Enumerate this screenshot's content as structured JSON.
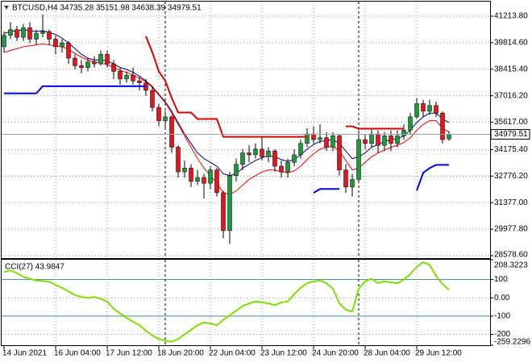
{
  "chart_data": [
    {
      "type": "candlestick",
      "title": "BTCUSD,H4  34735.28 35151.98 34638.39 34979.51",
      "categories": [
        "14 Jun 2021",
        null,
        null,
        null,
        null,
        null,
        null,
        null,
        "16 Jun 04:00",
        null,
        null,
        null,
        null,
        null,
        null,
        null,
        "17 Jun 12:00",
        null,
        null,
        null,
        null,
        null,
        null,
        null,
        "18 Jun 20:00",
        null,
        null,
        null,
        null,
        null,
        null,
        null,
        "22 Jun 04:00",
        null,
        null,
        null,
        null,
        null,
        null,
        null,
        "23 Jun 12:00",
        null,
        null,
        null,
        null,
        null,
        null,
        null,
        "24 Jun 20:00",
        null,
        null,
        null,
        null,
        null,
        null,
        null,
        "28 Jun 04:00",
        null,
        null,
        null,
        null,
        null,
        null,
        null,
        "29 Jun 12:00",
        null,
        null,
        null,
        null,
        null
      ],
      "open": [
        39600,
        40200,
        40500,
        40100,
        40600,
        40000,
        40300,
        40400,
        40000,
        39600,
        39800,
        39000,
        38600,
        38500,
        38800,
        38700,
        39200,
        38700,
        38300,
        37900,
        38100,
        37800,
        37700,
        37300,
        36400,
        35700,
        35900,
        34300,
        33000,
        33200,
        32500,
        32700,
        32400,
        33100,
        31900,
        29900,
        32800,
        33400,
        34000,
        33900,
        34200,
        33800,
        34100,
        33300,
        33000,
        33500,
        33900,
        34500,
        35000,
        34700,
        34800,
        34300,
        34900,
        33100,
        32200,
        32600,
        34700,
        34500,
        35000,
        34400,
        34900,
        34500,
        34900,
        35200,
        35900,
        36600,
        36200,
        36500,
        36100,
        34735.28
      ],
      "high": [
        40400,
        40900,
        40700,
        40800,
        40900,
        40500,
        41300,
        40500,
        40200,
        40000,
        39900,
        39200,
        38900,
        39000,
        39100,
        39400,
        39400,
        38900,
        38500,
        38300,
        38500,
        38000,
        37900,
        37500,
        36600,
        36200,
        36000,
        34400,
        33600,
        33400,
        33100,
        32900,
        33300,
        33200,
        32000,
        33000,
        33700,
        34200,
        34400,
        34500,
        34800,
        34300,
        34200,
        33600,
        33700,
        34200,
        34700,
        35300,
        35400,
        35500,
        35100,
        35100,
        35000,
        33400,
        32900,
        35200,
        35000,
        35300,
        35200,
        35100,
        35200,
        35200,
        35500,
        36100,
        36900,
        36800,
        36800,
        36700,
        36200,
        35151.98
      ],
      "low": [
        39300,
        40000,
        39900,
        39900,
        39800,
        39700,
        40100,
        39700,
        39200,
        39300,
        38700,
        38400,
        38200,
        38300,
        38500,
        38600,
        38500,
        37900,
        37600,
        37700,
        37600,
        37300,
        37000,
        36200,
        35400,
        35300,
        34000,
        32700,
        32700,
        32200,
        32300,
        31600,
        32100,
        31700,
        29500,
        29200,
        32500,
        33100,
        33500,
        33700,
        33600,
        33500,
        33000,
        32700,
        32700,
        33300,
        33700,
        34300,
        34500,
        34500,
        34100,
        34100,
        32800,
        31900,
        31700,
        32400,
        34200,
        34300,
        34000,
        34100,
        34100,
        34300,
        34700,
        35000,
        35800,
        35900,
        36000,
        35900,
        34500,
        34638.39
      ],
      "close": [
        40200,
        40500,
        40100,
        40600,
        40000,
        40300,
        40400,
        40000,
        39600,
        39800,
        39000,
        38600,
        38500,
        38800,
        38700,
        39200,
        38700,
        38300,
        37900,
        38100,
        37800,
        37700,
        37300,
        36400,
        35700,
        35900,
        34300,
        33000,
        33200,
        32500,
        32700,
        32400,
        33100,
        31900,
        29900,
        32800,
        33400,
        34000,
        33900,
        34200,
        33800,
        34100,
        33300,
        33000,
        33500,
        33900,
        34500,
        35000,
        34700,
        34800,
        34300,
        34900,
        33100,
        32200,
        32600,
        34700,
        34500,
        35000,
        34400,
        34900,
        34500,
        34900,
        35200,
        35900,
        36600,
        36200,
        36500,
        36100,
        34700,
        34979.51
      ],
      "up_color": "#1f9a3a",
      "down_color": "#e8141b",
      "wick_color": "#000000",
      "series": [
        {
          "color": "#000080",
          "line_width": 1,
          "values": [
            40300,
            40400,
            40450,
            40500,
            40450,
            40400,
            40450,
            40350,
            40250,
            40050,
            39800,
            39500,
            39200,
            39000,
            38900,
            38900,
            38850,
            38700,
            38500,
            38400,
            38250,
            38050,
            37800,
            37500,
            37100,
            36700,
            36200,
            35600,
            35000,
            34500,
            34000,
            33700,
            33500,
            33300,
            32900,
            32800,
            32900,
            33200,
            33400,
            33600,
            33750,
            33850,
            33800,
            33650,
            33550,
            33650,
            33900,
            34200,
            34450,
            34600,
            34650,
            34700,
            34500,
            34100,
            33700,
            33800,
            34000,
            34300,
            34450,
            34600,
            34700,
            34750,
            34900,
            35200,
            35600,
            35900,
            36100,
            36100,
            35800,
            35600
          ]
        },
        {
          "color": "#ff0000",
          "line_width": 1,
          "values": [
            39300,
            39400,
            39500,
            39600,
            39650,
            39700,
            39750,
            39700,
            39650,
            39600,
            39450,
            39250,
            39050,
            38900,
            38800,
            38750,
            38650,
            38500,
            38350,
            38250,
            38100,
            37950,
            37750,
            37450,
            37050,
            36650,
            36100,
            35500,
            34900,
            34300,
            33700,
            33200,
            32800,
            32400,
            31900,
            31800,
            32000,
            32300,
            32600,
            32800,
            33000,
            33100,
            33100,
            33000,
            32950,
            33050,
            33300,
            33650,
            33950,
            34200,
            34300,
            34350,
            34100,
            33600,
            33100,
            33200,
            33500,
            33800,
            34000,
            34150,
            34300,
            34400,
            34550,
            34800,
            35200,
            35500,
            35700,
            35700,
            35300,
            35100
          ]
        },
        {
          "color": "#e00000",
          "line_width": 2,
          "values": [
            null,
            null,
            null,
            null,
            null,
            null,
            null,
            null,
            null,
            null,
            null,
            null,
            null,
            null,
            null,
            null,
            null,
            null,
            null,
            null,
            null,
            null,
            40150,
            39300,
            38300,
            37800,
            36900,
            36130,
            36130,
            36130,
            35790,
            35790,
            35790,
            35790,
            34850,
            34850,
            34850,
            34850,
            34850,
            34850,
            34850,
            34850,
            34850,
            34850,
            34850,
            34850,
            34850,
            34850,
            null,
            null,
            null,
            null,
            null,
            35400,
            35400,
            35280,
            35280,
            35280,
            35280,
            35280,
            35280,
            35280,
            35280,
            null,
            null,
            null,
            null,
            null,
            null,
            null
          ]
        },
        {
          "color": "#0000ff",
          "line_width": 2,
          "values": [
            37140,
            37140,
            37140,
            37140,
            37140,
            37140,
            37520,
            37520,
            37520,
            37520,
            37520,
            37520,
            37520,
            37520,
            37520,
            37520,
            37520,
            37520,
            37520,
            37520,
            37520,
            37520,
            37520,
            null,
            null,
            null,
            null,
            null,
            null,
            null,
            null,
            null,
            null,
            null,
            null,
            null,
            null,
            null,
            null,
            null,
            null,
            null,
            null,
            null,
            null,
            null,
            null,
            null,
            31890,
            32100,
            32100,
            32100,
            32100,
            null,
            null,
            null,
            null,
            null,
            null,
            null,
            null,
            null,
            null,
            null,
            32010,
            32950,
            33200,
            33370,
            33370,
            33370
          ]
        }
      ],
      "ylim": [
        28450,
        41980
      ],
      "yticks": [
        {
          "value": 41213.8,
          "label": "41213.80"
        },
        {
          "value": 39814.6,
          "label": "39814.60"
        },
        {
          "value": 38415.4,
          "label": "38415.40"
        },
        {
          "value": 37016.2,
          "label": "37016.20"
        },
        {
          "value": 35617,
          "label": "35617.00"
        },
        {
          "value": 34175.4,
          "label": "34175.40"
        },
        {
          "value": 32776.2,
          "label": "32776.20"
        },
        {
          "value": 31377,
          "label": "31377.00"
        },
        {
          "value": 29977.8,
          "label": "29977.80"
        },
        {
          "value": 28578.6,
          "label": "28578.60"
        }
      ],
      "grid": true
    },
    {
      "type": "line",
      "title": "CCI(27) 43.9847",
      "color": "#7fdf00",
      "values": [
        141,
        150,
        135,
        115,
        105,
        95,
        92,
        88,
        70,
        55,
        35,
        15,
        5,
        0,
        5,
        -5,
        -20,
        -60,
        -85,
        -110,
        -130,
        -150,
        -180,
        -205,
        -225,
        -235,
        -240,
        -225,
        -200,
        -175,
        -150,
        -135,
        -140,
        -150,
        -120,
        -95,
        -70,
        -45,
        -30,
        -20,
        -25,
        -30,
        -40,
        -25,
        -20,
        20,
        55,
        80,
        90,
        95,
        80,
        50,
        -30,
        -65,
        -75,
        50,
        90,
        105,
        80,
        90,
        85,
        80,
        100,
        130,
        170,
        195,
        180,
        120,
        75,
        43.9847
      ],
      "ylim": [
        -259.2296,
        208.3223
      ],
      "yticks": [
        208.3223,
        100,
        {
          "value": 0,
          "label": "0.00"
        },
        -100,
        -200,
        -259.2296
      ],
      "levels": [
        100,
        -100
      ],
      "level_color": "#4f8f9f",
      "grid": true
    }
  ]
}
